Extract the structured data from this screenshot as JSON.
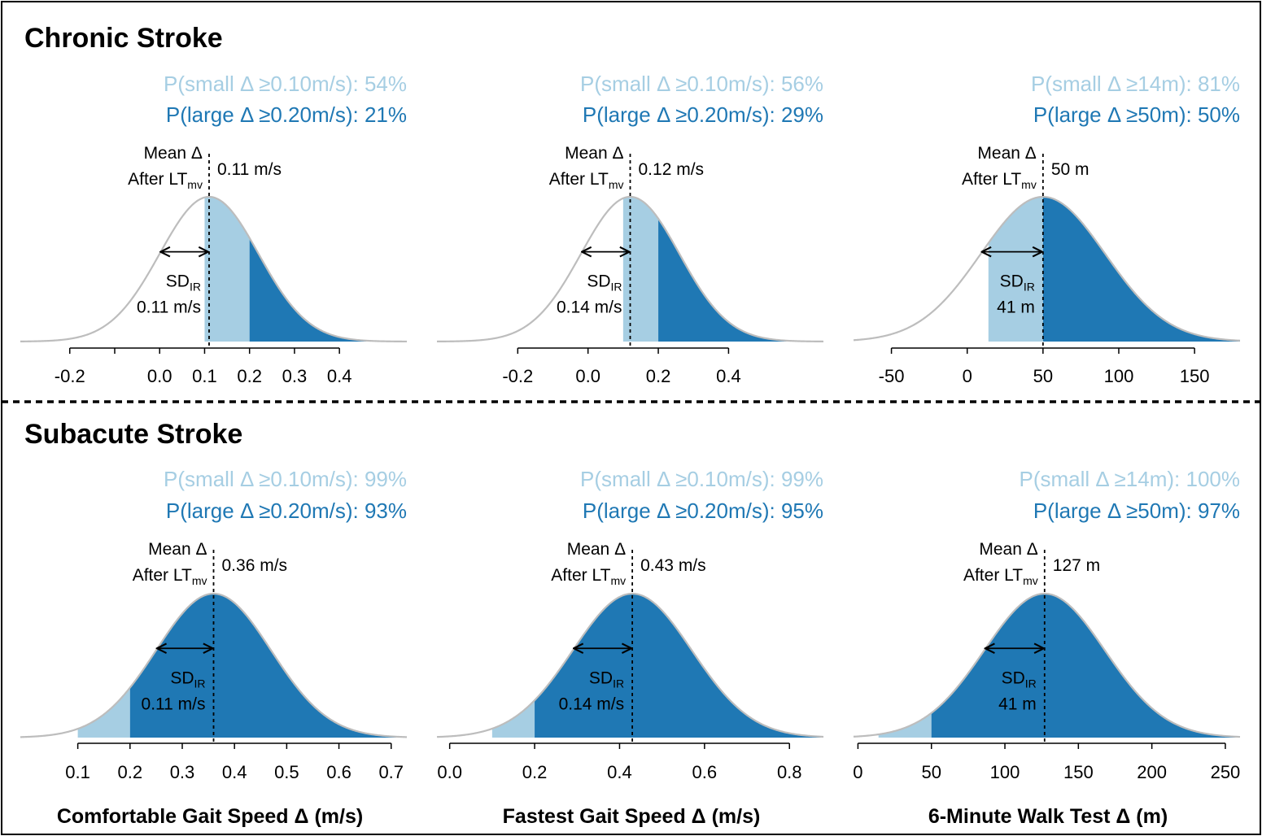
{
  "figure": {
    "colors": {
      "small": "#a6cee3",
      "large": "#1f78b4",
      "curve": "#bdbdbd",
      "text": "#000000"
    },
    "sections": [
      {
        "title": "Chronic Stroke"
      },
      {
        "title": "Subacute Stroke"
      }
    ],
    "labels": {
      "mean_line1": "Mean Δ",
      "mean_line2": "After LT",
      "mean_sub": "mv",
      "sd_main": "SD",
      "sd_sub": "IR"
    },
    "xlabels": [
      "Comfortable Gait Speed Δ (m/s)",
      "Fastest Gait Speed Δ (m/s)",
      "6-Minute Walk Test Δ (m)"
    ]
  },
  "chart_data": [
    {
      "type": "area",
      "section": "Chronic Stroke",
      "outcome": "Comfortable Gait Speed",
      "mean": 0.11,
      "sd": 0.11,
      "mean_label": "0.11 m/s",
      "sd_label": "0.11 m/s",
      "small_threshold": 0.1,
      "large_threshold": 0.2,
      "p_small": "P(small Δ ≥0.10m/s): 54%",
      "p_large": "P(large Δ ≥0.20m/s): 21%",
      "xlim": [
        -0.31,
        0.55
      ],
      "ticks": [
        {
          "v": -0.2,
          "l": "-0.2"
        },
        {
          "v": 0.0,
          "l": "0.0"
        },
        {
          "v": 0.1,
          "l": "0.1"
        },
        {
          "v": 0.2,
          "l": "0.2"
        },
        {
          "v": 0.3,
          "l": "0.3"
        },
        {
          "v": 0.4,
          "l": "0.4"
        }
      ],
      "minor_ticks": [
        -0.1
      ]
    },
    {
      "type": "area",
      "section": "Chronic Stroke",
      "outcome": "Fastest Gait Speed",
      "mean": 0.12,
      "sd": 0.14,
      "mean_label": "0.12 m/s",
      "sd_label": "0.14 m/s",
      "small_threshold": 0.1,
      "large_threshold": 0.2,
      "p_small": "P(small Δ ≥0.10m/s): 56%",
      "p_large": "P(large Δ ≥0.20m/s): 29%",
      "xlim": [
        -0.43,
        0.67
      ],
      "ticks": [
        {
          "v": -0.2,
          "l": "-0.2"
        },
        {
          "v": 0.0,
          "l": "0.0"
        },
        {
          "v": 0.2,
          "l": "0.2"
        },
        {
          "v": 0.4,
          "l": "0.4"
        }
      ],
      "minor_ticks": []
    },
    {
      "type": "area",
      "section": "Chronic Stroke",
      "outcome": "6-Minute Walk Test",
      "mean": 50,
      "sd": 41,
      "mean_label": "50 m",
      "sd_label": "41 m",
      "small_threshold": 14,
      "large_threshold": 50,
      "p_small": "P(small Δ ≥14m): 81%",
      "p_large": "P(large Δ ≥50m): 50%",
      "xlim": [
        -75,
        180
      ],
      "ticks": [
        {
          "v": -50,
          "l": "-50"
        },
        {
          "v": 0,
          "l": "0"
        },
        {
          "v": 50,
          "l": "50"
        },
        {
          "v": 100,
          "l": "100"
        },
        {
          "v": 150,
          "l": "150"
        }
      ],
      "minor_ticks": []
    },
    {
      "type": "area",
      "section": "Subacute Stroke",
      "outcome": "Comfortable Gait Speed",
      "mean": 0.36,
      "sd": 0.11,
      "mean_label": "0.36 m/s",
      "sd_label": "0.11 m/s",
      "small_threshold": 0.1,
      "large_threshold": 0.2,
      "p_small": "P(small Δ ≥0.10m/s): 99%",
      "p_large": "P(large Δ ≥0.20m/s): 93%",
      "xlim": [
        -0.01,
        0.73
      ],
      "ticks": [
        {
          "v": 0.1,
          "l": "0.1"
        },
        {
          "v": 0.2,
          "l": "0.2"
        },
        {
          "v": 0.3,
          "l": "0.3"
        },
        {
          "v": 0.4,
          "l": "0.4"
        },
        {
          "v": 0.5,
          "l": "0.5"
        },
        {
          "v": 0.6,
          "l": "0.6"
        },
        {
          "v": 0.7,
          "l": "0.7"
        }
      ],
      "minor_ticks": []
    },
    {
      "type": "area",
      "section": "Subacute Stroke",
      "outcome": "Fastest Gait Speed",
      "mean": 0.43,
      "sd": 0.14,
      "mean_label": "0.43 m/s",
      "sd_label": "0.14 m/s",
      "small_threshold": 0.1,
      "large_threshold": 0.2,
      "p_small": "P(small Δ ≥0.10m/s): 99%",
      "p_large": "P(large Δ ≥0.20m/s): 95%",
      "xlim": [
        -0.03,
        0.88
      ],
      "ticks": [
        {
          "v": 0.0,
          "l": "0.0"
        },
        {
          "v": 0.2,
          "l": "0.2"
        },
        {
          "v": 0.4,
          "l": "0.4"
        },
        {
          "v": 0.6,
          "l": "0.6"
        },
        {
          "v": 0.8,
          "l": "0.8"
        }
      ],
      "minor_ticks": []
    },
    {
      "type": "area",
      "section": "Subacute Stroke",
      "outcome": "6-Minute Walk Test",
      "mean": 127,
      "sd": 41,
      "mean_label": "127 m",
      "sd_label": "41 m",
      "small_threshold": 14,
      "large_threshold": 50,
      "p_small": "P(small Δ ≥14m): 100%",
      "p_large": "P(large Δ ≥50m): 97%",
      "xlim": [
        -3,
        260
      ],
      "ticks": [
        {
          "v": 0,
          "l": "0"
        },
        {
          "v": 50,
          "l": "50"
        },
        {
          "v": 100,
          "l": "100"
        },
        {
          "v": 150,
          "l": "150"
        },
        {
          "v": 200,
          "l": "200"
        },
        {
          "v": 250,
          "l": "250"
        }
      ],
      "minor_ticks": []
    }
  ]
}
